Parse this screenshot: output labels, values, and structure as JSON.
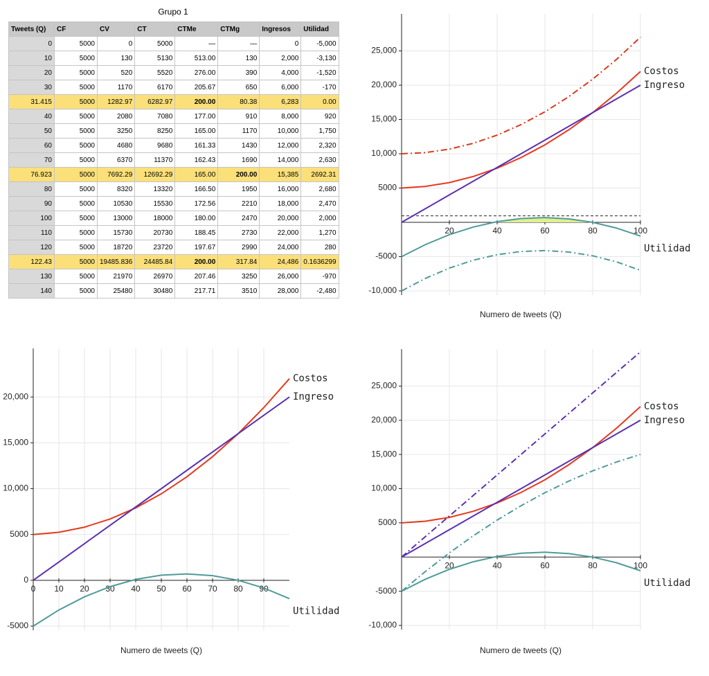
{
  "table": {
    "title": "Grupo 1",
    "columns": [
      "Tweets  (Q)",
      "CF",
      "CV",
      "CT",
      "CTMe",
      "CTMg",
      "Ingresos",
      "Utilidad"
    ],
    "rows": [
      [
        "0",
        "5000",
        "0",
        "5000",
        "—",
        "—",
        "0",
        "-5,000"
      ],
      [
        "10",
        "5000",
        "130",
        "5130",
        "513.00",
        "130",
        "2,000",
        "-3,130"
      ],
      [
        "20",
        "5000",
        "520",
        "5520",
        "276.00",
        "390",
        "4,000",
        "-1,520"
      ],
      [
        "30",
        "5000",
        "1170",
        "6170",
        "205.67",
        "650",
        "6,000",
        "-170"
      ],
      [
        "31.415",
        "5000",
        "1282.97",
        "6282.97",
        "200.00",
        "80.38",
        "6,283",
        "0.00"
      ],
      [
        "40",
        "5000",
        "2080",
        "7080",
        "177.00",
        "910",
        "8,000",
        "920"
      ],
      [
        "50",
        "5000",
        "3250",
        "8250",
        "165.00",
        "1170",
        "10,000",
        "1,750"
      ],
      [
        "60",
        "5000",
        "4680",
        "9680",
        "161.33",
        "1430",
        "12,000",
        "2,320"
      ],
      [
        "70",
        "5000",
        "6370",
        "11370",
        "162.43",
        "1690",
        "14,000",
        "2,630"
      ],
      [
        "76.923",
        "5000",
        "7692.29",
        "12692.29",
        "165.00",
        "200.00",
        "15,385",
        "2692.31"
      ],
      [
        "80",
        "5000",
        "8320",
        "13320",
        "166.50",
        "1950",
        "16,000",
        "2,680"
      ],
      [
        "90",
        "5000",
        "10530",
        "15530",
        "172.56",
        "2210",
        "18,000",
        "2,470"
      ],
      [
        "100",
        "5000",
        "13000",
        "18000",
        "180.00",
        "2470",
        "20,000",
        "2,000"
      ],
      [
        "110",
        "5000",
        "15730",
        "20730",
        "188.45",
        "2730",
        "22,000",
        "1,270"
      ],
      [
        "120",
        "5000",
        "18720",
        "23720",
        "197.67",
        "2990",
        "24,000",
        "280"
      ],
      [
        "122.43",
        "5000",
        "19485.836",
        "24485.84",
        "200.00",
        "317.84",
        "24,486",
        "0.1636299"
      ],
      [
        "130",
        "5000",
        "21970",
        "26970",
        "207.46",
        "3250",
        "26,000",
        "-970"
      ],
      [
        "140",
        "5000",
        "25480",
        "30480",
        "217.71",
        "3510",
        "28,000",
        "-2,480"
      ]
    ],
    "highlight_rows": [
      4,
      9,
      15
    ],
    "highlight_color": "#fbe07a",
    "bold_cells": [
      [
        4,
        4
      ],
      [
        9,
        5
      ],
      [
        15,
        4
      ]
    ]
  },
  "chart_data": [
    {
      "type": "line",
      "x_label": "Numero de tweets (Q)",
      "grid": true,
      "x": [
        0,
        10,
        20,
        30,
        40,
        50,
        60,
        70,
        80,
        90,
        100
      ],
      "xlim": [
        0,
        100
      ],
      "xticks": [
        20,
        40,
        60,
        80,
        100
      ],
      "ylim": [
        -10000,
        30000
      ],
      "yticks": [
        {
          "value": -10000,
          "label": "-10,000"
        },
        -5000,
        5000,
        {
          "value": 10000,
          "label": "10,000"
        },
        {
          "value": 15000,
          "label": "15,000"
        },
        {
          "value": 20000,
          "label": "20,000"
        },
        {
          "value": 25000,
          "label": "25,000"
        }
      ],
      "dashed_y": 950,
      "series": [
        {
          "name": "Costos",
          "color": "#e5391d",
          "values": [
            5000,
            5240,
            5800,
            6690,
            7900,
            9440,
            11300,
            13490,
            16000,
            18840,
            22000
          ]
        },
        {
          "name": "Ingreso",
          "color": "#5a2fb1",
          "values": [
            0,
            2000,
            4000,
            6000,
            8000,
            10000,
            12000,
            14000,
            16000,
            18000,
            20000
          ]
        },
        {
          "name": "Utilidad",
          "color": "#4f9a9a",
          "fill_positive": "#e2ef8c",
          "values": [
            -5000,
            -3240,
            -1800,
            -690,
            100,
            560,
            700,
            510,
            0,
            -840,
            -2000
          ]
        },
        {
          "color": "#d9391a",
          "dash": "dashdot",
          "values": [
            10000,
            10170,
            10680,
            11530,
            12720,
            14250,
            16120,
            18330,
            20880,
            23770,
            27000
          ]
        },
        {
          "color": "#4f9a9a",
          "dash": "dashdot",
          "values": [
            -10000,
            -8170,
            -6680,
            -5530,
            -4720,
            -4250,
            -4120,
            -4330,
            -4880,
            -5770,
            -7000
          ]
        }
      ]
    },
    {
      "type": "line",
      "x_label": "Numero de tweets (Q)",
      "grid": true,
      "x": [
        0,
        10,
        20,
        30,
        40,
        50,
        60,
        70,
        80,
        90,
        100
      ],
      "xlim": [
        0,
        100
      ],
      "xticks": [
        0,
        10,
        20,
        30,
        40,
        50,
        60,
        70,
        80,
        90
      ],
      "ylim": [
        -5000,
        25000
      ],
      "yticks": [
        -5000,
        0,
        5000,
        {
          "value": 10000,
          "label": "10,000"
        },
        {
          "value": 15000,
          "label": "15,000"
        },
        {
          "value": 20000,
          "label": "20,000"
        }
      ],
      "series": [
        {
          "name": "Costos",
          "color": "#e5391d",
          "values": [
            5000,
            5240,
            5800,
            6690,
            7900,
            9440,
            11300,
            13490,
            16000,
            18840,
            22000
          ]
        },
        {
          "name": "Ingreso",
          "color": "#5a2fb1",
          "values": [
            0,
            2000,
            4000,
            6000,
            8000,
            10000,
            12000,
            14000,
            16000,
            18000,
            20000
          ]
        },
        {
          "name": "Utilidad",
          "color": "#4f9a9a",
          "values": [
            -5000,
            -3240,
            -1800,
            -690,
            100,
            560,
            700,
            510,
            0,
            -840,
            -2000
          ]
        }
      ]
    },
    {
      "type": "line",
      "x_label": "Numero de tweets (Q)",
      "grid": true,
      "x": [
        0,
        10,
        20,
        30,
        40,
        50,
        60,
        70,
        80,
        90,
        100
      ],
      "xlim": [
        0,
        100
      ],
      "xticks": [
        20,
        40,
        60,
        80,
        100
      ],
      "ylim": [
        -10000,
        30000
      ],
      "yticks": [
        {
          "value": -10000,
          "label": "-10,000"
        },
        -5000,
        5000,
        {
          "value": 10000,
          "label": "10,000"
        },
        {
          "value": 15000,
          "label": "15,000"
        },
        {
          "value": 20000,
          "label": "20,000"
        },
        {
          "value": 25000,
          "label": "25,000"
        }
      ],
      "series": [
        {
          "name": "Costos",
          "color": "#e5391d",
          "values": [
            5000,
            5240,
            5800,
            6690,
            7900,
            9440,
            11300,
            13490,
            16000,
            18840,
            22000
          ]
        },
        {
          "name": "Ingreso",
          "color": "#5a2fb1",
          "values": [
            0,
            2000,
            4000,
            6000,
            8000,
            10000,
            12000,
            14000,
            16000,
            18000,
            20000
          ]
        },
        {
          "name": "Utilidad",
          "color": "#4f9a9a",
          "values": [
            -5000,
            -3240,
            -1800,
            -690,
            100,
            560,
            700,
            510,
            0,
            -840,
            -2000
          ]
        },
        {
          "color": "#5a2fb1",
          "dash": "dashdot",
          "values": [
            0,
            3000,
            6000,
            9000,
            12000,
            15000,
            18000,
            21000,
            24000,
            27000,
            30000
          ]
        },
        {
          "color": "#4f9a9a",
          "dash": "dashdot",
          "values": [
            -5000,
            -2100,
            600,
            3100,
            5400,
            7500,
            9400,
            11100,
            12600,
            13900,
            15000
          ]
        }
      ]
    }
  ]
}
